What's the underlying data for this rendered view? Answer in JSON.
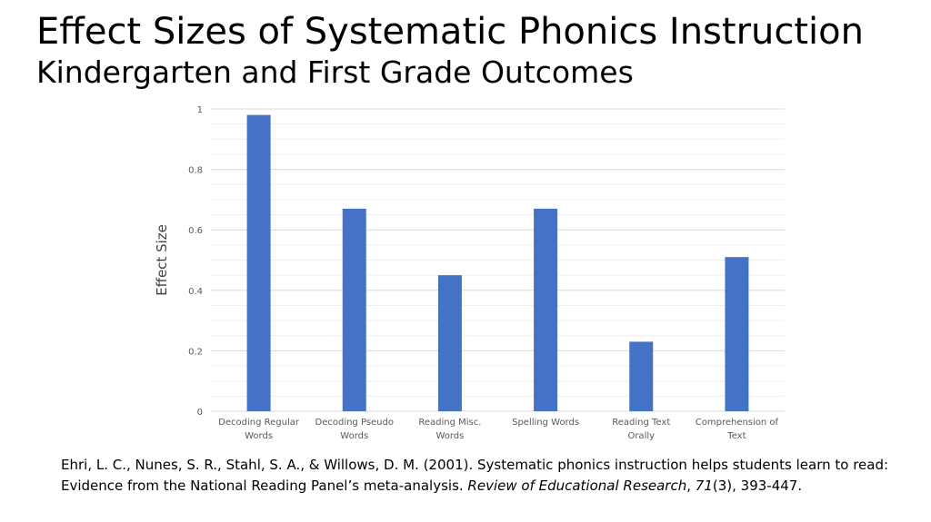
{
  "title": "Effect Sizes of Systematic Phonics Instruction",
  "subtitle": "Kindergarten and First Grade Outcomes",
  "chart_data": {
    "type": "bar",
    "categories": [
      [
        "Decoding Regular",
        "Words"
      ],
      [
        "Decoding Pseudo",
        "Words"
      ],
      [
        "Reading Misc.",
        "Words"
      ],
      [
        "Spelling Words"
      ],
      [
        "Reading Text",
        "Orally"
      ],
      [
        "Comprehension of",
        "Text"
      ]
    ],
    "values": [
      0.98,
      0.67,
      0.45,
      0.67,
      0.23,
      0.51
    ],
    "xlabel": "",
    "ylabel": "Effect Size",
    "ylim": [
      0,
      1
    ],
    "yticks": [
      "0",
      "0.2",
      "0.4",
      "0.6",
      "0.8",
      "1"
    ],
    "bar_color": "#4472C4",
    "grid": true
  },
  "citation": {
    "line1": "Ehri, L. C., Nunes, S. R., Stahl, S. A., & Willows, D. M. (2001). Systematic phonics instruction helps students learn to read:",
    "line2_plain": "Evidence from the National Reading Panel’s meta-analysis. ",
    "journal": "Review of Educational Research",
    "sep": ", ",
    "volume": "71",
    "issue_pages": "(3), 393-447."
  }
}
